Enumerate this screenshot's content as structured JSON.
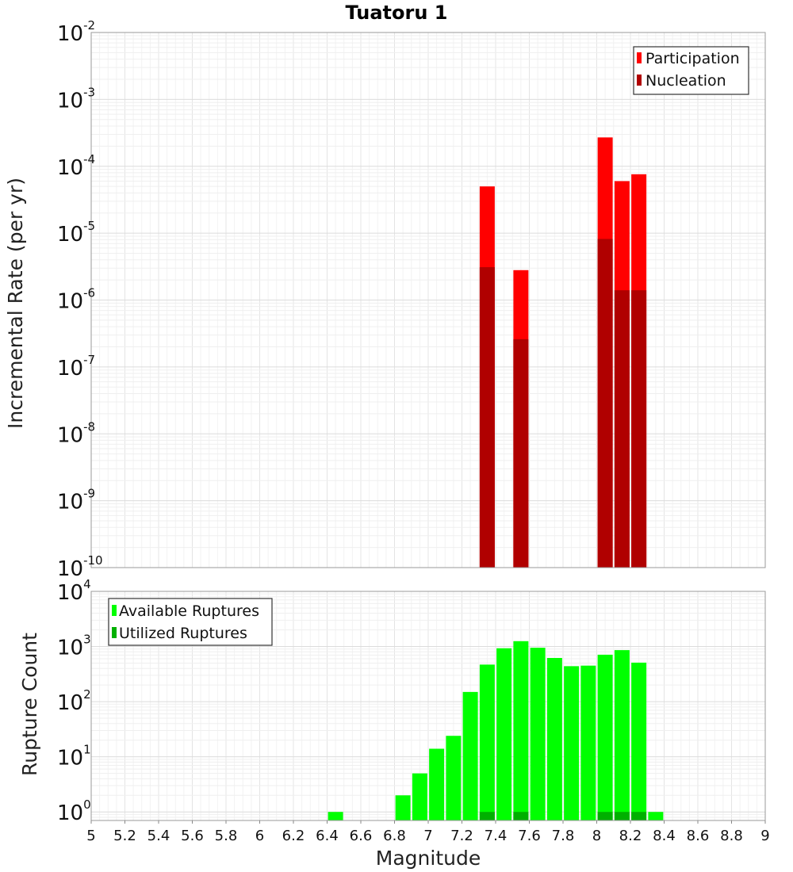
{
  "chart_data": [
    {
      "type": "bar",
      "title": "Tuatoru 1",
      "xlabel": "Magnitude",
      "ylabel": "Incremental Rate (per yr)",
      "yscale": "log",
      "xlim": [
        5,
        9
      ],
      "ylim": [
        1e-10,
        0.01
      ],
      "y_ticks": [
        {
          "base": "10",
          "exp": "-2"
        },
        {
          "base": "10",
          "exp": "-3"
        },
        {
          "base": "10",
          "exp": "-4"
        },
        {
          "base": "10",
          "exp": "-5"
        },
        {
          "base": "10",
          "exp": "-6"
        },
        {
          "base": "10",
          "exp": "-7"
        },
        {
          "base": "10",
          "exp": "-8"
        },
        {
          "base": "10",
          "exp": "-9"
        },
        {
          "base": "10",
          "exp": "-10"
        }
      ],
      "legend_position": "top-right",
      "series": [
        {
          "name": "Participation",
          "color": "#ff0000",
          "x": [
            7.35,
            7.55,
            8.05,
            8.15,
            8.25
          ],
          "values": [
            5e-05,
            2.8e-06,
            0.00027,
            6e-05,
            7.6e-05
          ]
        },
        {
          "name": "Nucleation",
          "color": "#b00000",
          "x": [
            7.35,
            7.55,
            8.05,
            8.15,
            8.25
          ],
          "values": [
            3.1e-06,
            2.6e-07,
            8.2e-06,
            1.4e-06,
            1.4e-06
          ]
        }
      ]
    },
    {
      "type": "bar",
      "xlabel": "Magnitude",
      "ylabel": "Rupture Count",
      "yscale": "log",
      "xlim": [
        5,
        9
      ],
      "ylim": [
        0.7,
        10000
      ],
      "y_ticks": [
        {
          "base": "10",
          "exp": "4"
        },
        {
          "base": "10",
          "exp": "3"
        },
        {
          "base": "10",
          "exp": "2"
        },
        {
          "base": "10",
          "exp": "1"
        },
        {
          "base": "10",
          "exp": "0"
        }
      ],
      "x_ticks": [
        "5",
        "5.2",
        "5.4",
        "5.6",
        "5.8",
        "6",
        "6.2",
        "6.4",
        "6.6",
        "6.8",
        "7",
        "7.2",
        "7.4",
        "7.6",
        "7.8",
        "8",
        "8.2",
        "8.4",
        "8.6",
        "8.8",
        "9"
      ],
      "legend_position": "top-left",
      "series": [
        {
          "name": "Available Ruptures",
          "color": "#00ff00",
          "x": [
            6.45,
            6.85,
            6.95,
            7.05,
            7.15,
            7.25,
            7.35,
            7.45,
            7.55,
            7.65,
            7.75,
            7.85,
            7.95,
            8.05,
            8.15,
            8.25,
            8.35
          ],
          "values": [
            1,
            2,
            5,
            14,
            24,
            150,
            470,
            930,
            1250,
            950,
            620,
            440,
            450,
            710,
            860,
            510,
            1
          ]
        },
        {
          "name": "Utilized Ruptures",
          "color": "#00b000",
          "x": [
            7.35,
            7.55,
            8.05,
            8.15,
            8.25
          ],
          "values": [
            1,
            1,
            1,
            1,
            1
          ]
        }
      ]
    }
  ]
}
